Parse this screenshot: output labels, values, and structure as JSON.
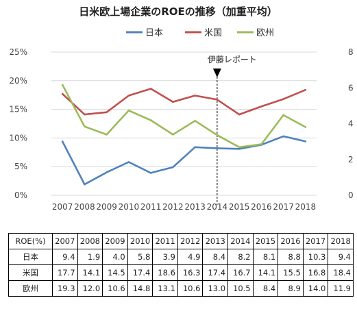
{
  "chart_data": {
    "type": "line",
    "title": "日米欧上場企業のROEの推移（加重平均）",
    "x": [
      "2007",
      "2008",
      "2009",
      "2010",
      "2011",
      "2012",
      "2013",
      "2014",
      "2015",
      "2016",
      "2017",
      "2018"
    ],
    "series": [
      {
        "name": "日本",
        "color": "#4f81bd",
        "values": [
          9.4,
          1.9,
          4.0,
          5.8,
          3.9,
          4.9,
          8.4,
          8.2,
          8.1,
          8.8,
          10.3,
          9.4
        ]
      },
      {
        "name": "米国",
        "color": "#c0504d",
        "values": [
          17.7,
          14.1,
          14.5,
          17.4,
          18.6,
          16.3,
          17.4,
          16.7,
          14.1,
          15.5,
          16.8,
          18.4
        ]
      },
      {
        "name": "欧州",
        "color": "#9bbb59",
        "values": [
          19.3,
          12.0,
          10.6,
          14.8,
          13.1,
          10.6,
          13.0,
          10.5,
          8.4,
          8.9,
          14.0,
          11.9
        ]
      }
    ],
    "yticks": [
      "0%",
      "5%",
      "10%",
      "15%",
      "20%",
      "25%"
    ],
    "ylim": [
      0,
      25
    ],
    "right_ticks": [
      "0",
      "2",
      "4",
      "6",
      "8"
    ],
    "annotation": {
      "text": "伊藤レポート",
      "x": "2014"
    },
    "legend": "top",
    "grid": true
  },
  "table": {
    "header": "ROE(%)",
    "columns": [
      "2007",
      "2008",
      "2009",
      "2010",
      "2011",
      "2012",
      "2013",
      "2014",
      "2015",
      "2016",
      "2017",
      "2018"
    ],
    "rows": [
      {
        "label": "日本",
        "values": [
          "9.4",
          "1.9",
          "4.0",
          "5.8",
          "3.9",
          "4.9",
          "8.4",
          "8.2",
          "8.1",
          "8.8",
          "10.3",
          "9.4"
        ]
      },
      {
        "label": "米国",
        "values": [
          "17.7",
          "14.1",
          "14.5",
          "17.4",
          "18.6",
          "16.3",
          "17.4",
          "16.7",
          "14.1",
          "15.5",
          "16.8",
          "18.4"
        ]
      },
      {
        "label": "欧州",
        "values": [
          "19.3",
          "12.0",
          "10.6",
          "14.8",
          "13.1",
          "10.6",
          "13.0",
          "10.5",
          "8.4",
          "8.9",
          "14.0",
          "11.9"
        ]
      }
    ]
  }
}
